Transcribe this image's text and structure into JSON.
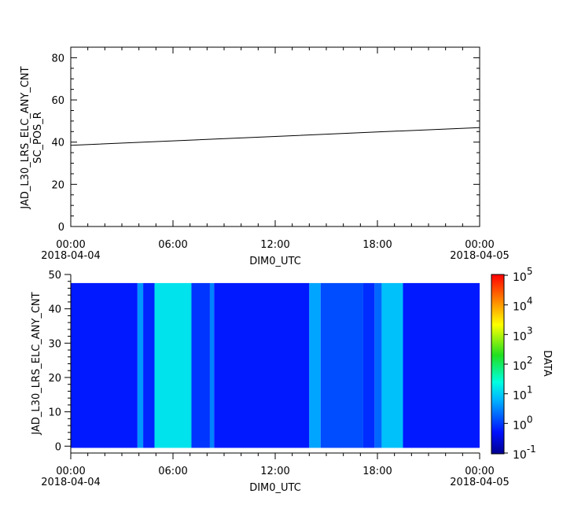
{
  "chart_data": [
    {
      "type": "line",
      "ylabel_line1": "JAD_L30_LRS_ELC_ANY_CNT",
      "ylabel_line2": "SC_POS_R",
      "xlabel": "DIM0_UTC",
      "xlim": [
        "2018-04-04T00:00",
        "2018-04-05T00:00"
      ],
      "ylim": [
        0,
        85
      ],
      "yticks": [
        0,
        20,
        40,
        60,
        80
      ],
      "xticks": [
        {
          "time": "2018-04-04T00:00",
          "label": "00:00",
          "date": "2018-04-04"
        },
        {
          "time": "2018-04-04T06:00",
          "label": "06:00",
          "date": ""
        },
        {
          "time": "2018-04-04T12:00",
          "label": "12:00",
          "date": ""
        },
        {
          "time": "2018-04-04T18:00",
          "label": "18:00",
          "date": ""
        },
        {
          "time": "2018-04-05T00:00",
          "label": "00:00",
          "date": "2018-04-05"
        }
      ],
      "series": [
        {
          "x": [
            "2018-04-04T00:00",
            "2018-04-04T06:00",
            "2018-04-04T12:00",
            "2018-04-04T18:00",
            "2018-04-05T00:00"
          ],
          "y": [
            38.5,
            40.6,
            42.7,
            44.8,
            46.9
          ]
        }
      ]
    },
    {
      "type": "heatmap",
      "ylabel": "JAD_L30_LRS_ELC_ANY_CNT",
      "xlabel": "DIM0_UTC",
      "zlabel": "DATA",
      "zscale": "log",
      "zlim": [
        0.1,
        100000
      ],
      "colorbar_ticks": [
        {
          "base": "10",
          "exp": "5"
        },
        {
          "base": "10",
          "exp": "4"
        },
        {
          "base": "10",
          "exp": "3"
        },
        {
          "base": "10",
          "exp": "2"
        },
        {
          "base": "10",
          "exp": "1"
        },
        {
          "base": "10",
          "exp": "0"
        },
        {
          "base": "10",
          "exp": "-1"
        }
      ],
      "xlim": [
        "2018-04-04T00:00",
        "2018-04-05T00:00"
      ],
      "ylim": [
        -2,
        50
      ],
      "yticks": [
        0,
        10,
        20,
        30,
        40,
        50
      ],
      "xticks": [
        {
          "time": "2018-04-04T00:00",
          "label": "00:00",
          "date": "2018-04-04"
        },
        {
          "time": "2018-04-04T06:00",
          "label": "06:00",
          "date": ""
        },
        {
          "time": "2018-04-04T12:00",
          "label": "12:00",
          "date": ""
        },
        {
          "time": "2018-04-04T18:00",
          "label": "18:00",
          "date": ""
        },
        {
          "time": "2018-04-05T00:00",
          "label": "00:00",
          "date": "2018-04-05"
        }
      ],
      "channels": [
        0,
        47
      ],
      "bands": [
        {
          "start": "2018-04-04T00:00",
          "end": "2018-04-04T03:55",
          "value": 0.6
        },
        {
          "start": "2018-04-04T03:55",
          "end": "2018-04-04T04:15",
          "value": 4
        },
        {
          "start": "2018-04-04T04:15",
          "end": "2018-04-04T04:55",
          "value": 0.7
        },
        {
          "start": "2018-04-04T04:55",
          "end": "2018-04-04T07:05",
          "value": 15
        },
        {
          "start": "2018-04-04T07:05",
          "end": "2018-04-04T08:10",
          "value": 0.9
        },
        {
          "start": "2018-04-04T08:10",
          "end": "2018-04-04T08:25",
          "value": 3
        },
        {
          "start": "2018-04-04T08:25",
          "end": "2018-04-04T14:00",
          "value": 0.6
        },
        {
          "start": "2018-04-04T14:00",
          "end": "2018-04-04T14:40",
          "value": 5
        },
        {
          "start": "2018-04-04T14:40",
          "end": "2018-04-04T17:10",
          "value": 1.3
        },
        {
          "start": "2018-04-04T17:10",
          "end": "2018-04-04T17:50",
          "value": 0.8
        },
        {
          "start": "2018-04-04T17:50",
          "end": "2018-04-04T18:15",
          "value": 2
        },
        {
          "start": "2018-04-04T18:15",
          "end": "2018-04-04T19:30",
          "value": 8
        },
        {
          "start": "2018-04-04T19:30",
          "end": "2018-04-05T00:00",
          "value": 0.6
        }
      ]
    }
  ]
}
